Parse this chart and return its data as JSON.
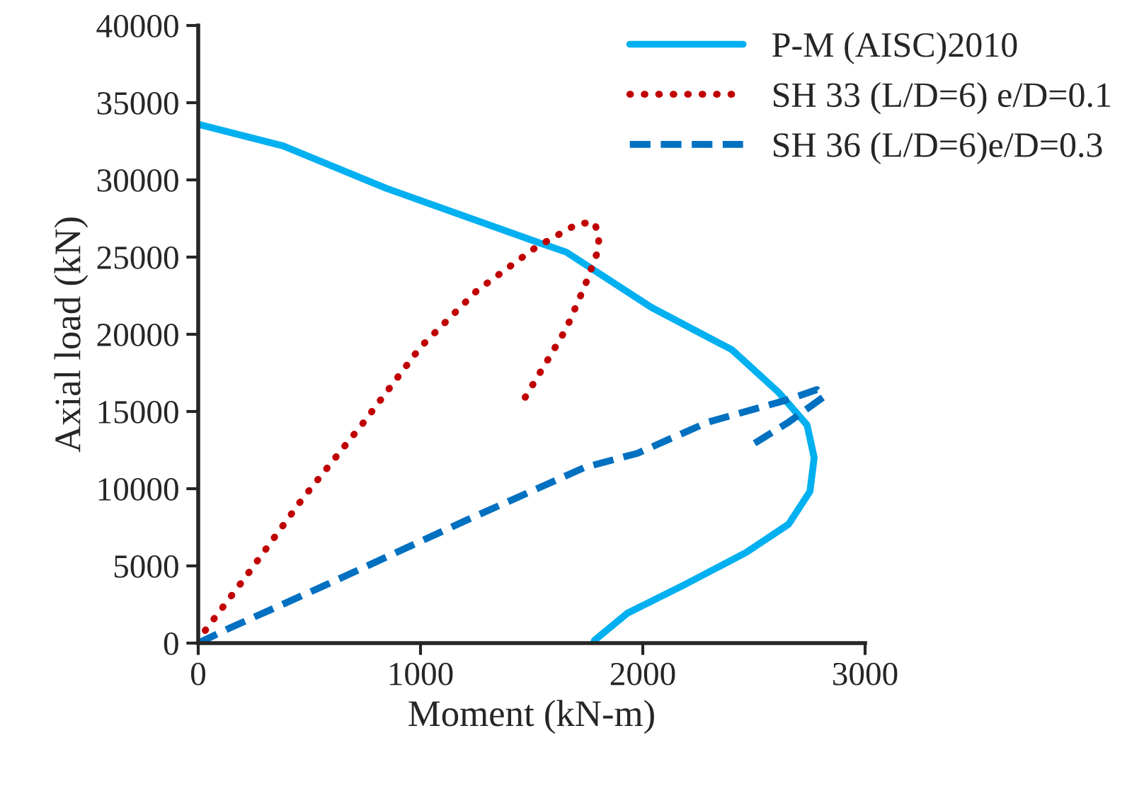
{
  "chart_data": {
    "type": "line",
    "xlabel": "Moment (kN-m)",
    "ylabel": "Axial load (kN)",
    "xlim": [
      0,
      3000
    ],
    "xticks": [
      0,
      1000,
      2000,
      3000
    ],
    "ylim": [
      0,
      40000
    ],
    "yticks": [
      0,
      5000,
      10000,
      15000,
      20000,
      25000,
      30000,
      35000,
      40000
    ],
    "grid": false,
    "legend": "top right",
    "series": [
      {
        "name": "P-M (AISC)2010",
        "color": "#00b0f0",
        "line_style": "solid",
        "x": [
          0,
          382,
          847,
          1510,
          1656,
          2038,
          2401,
          2611,
          2739,
          2771,
          2752,
          2656,
          2465,
          2185,
          1930,
          1783,
          1777
        ],
        "values": [
          33600,
          32200,
          29450,
          26050,
          25320,
          21750,
          19000,
          16240,
          14130,
          12000,
          9820,
          7700,
          5870,
          3760,
          1930,
          180,
          0
        ]
      },
      {
        "name": "SH 33 (L/D=6) e/D=0.1",
        "color": "#c00000",
        "line_style": "dotted",
        "x": [
          0,
          32,
          210,
          465,
          745,
          1000,
          1255,
          1516,
          1707,
          1783,
          1803,
          1796,
          1739,
          1656,
          1580,
          1465
        ],
        "values": [
          0,
          830,
          4220,
          9270,
          14310,
          19170,
          22840,
          25600,
          27160,
          27250,
          26240,
          25320,
          23120,
          20370,
          18530,
          15780
        ]
      },
      {
        "name": "SH 36 (L/D=6)e/D=0.3",
        "color": "#0070c0",
        "line_style": "dashed",
        "x": [
          0,
          146,
          573,
          1210,
          1739,
          1975,
          2293,
          2656,
          2783,
          2815,
          2656,
          2503
        ],
        "values": [
          0,
          1000,
          3760,
          7980,
          11380,
          12290,
          14310,
          15780,
          16420,
          15960,
          14310,
          12940
        ]
      }
    ]
  }
}
